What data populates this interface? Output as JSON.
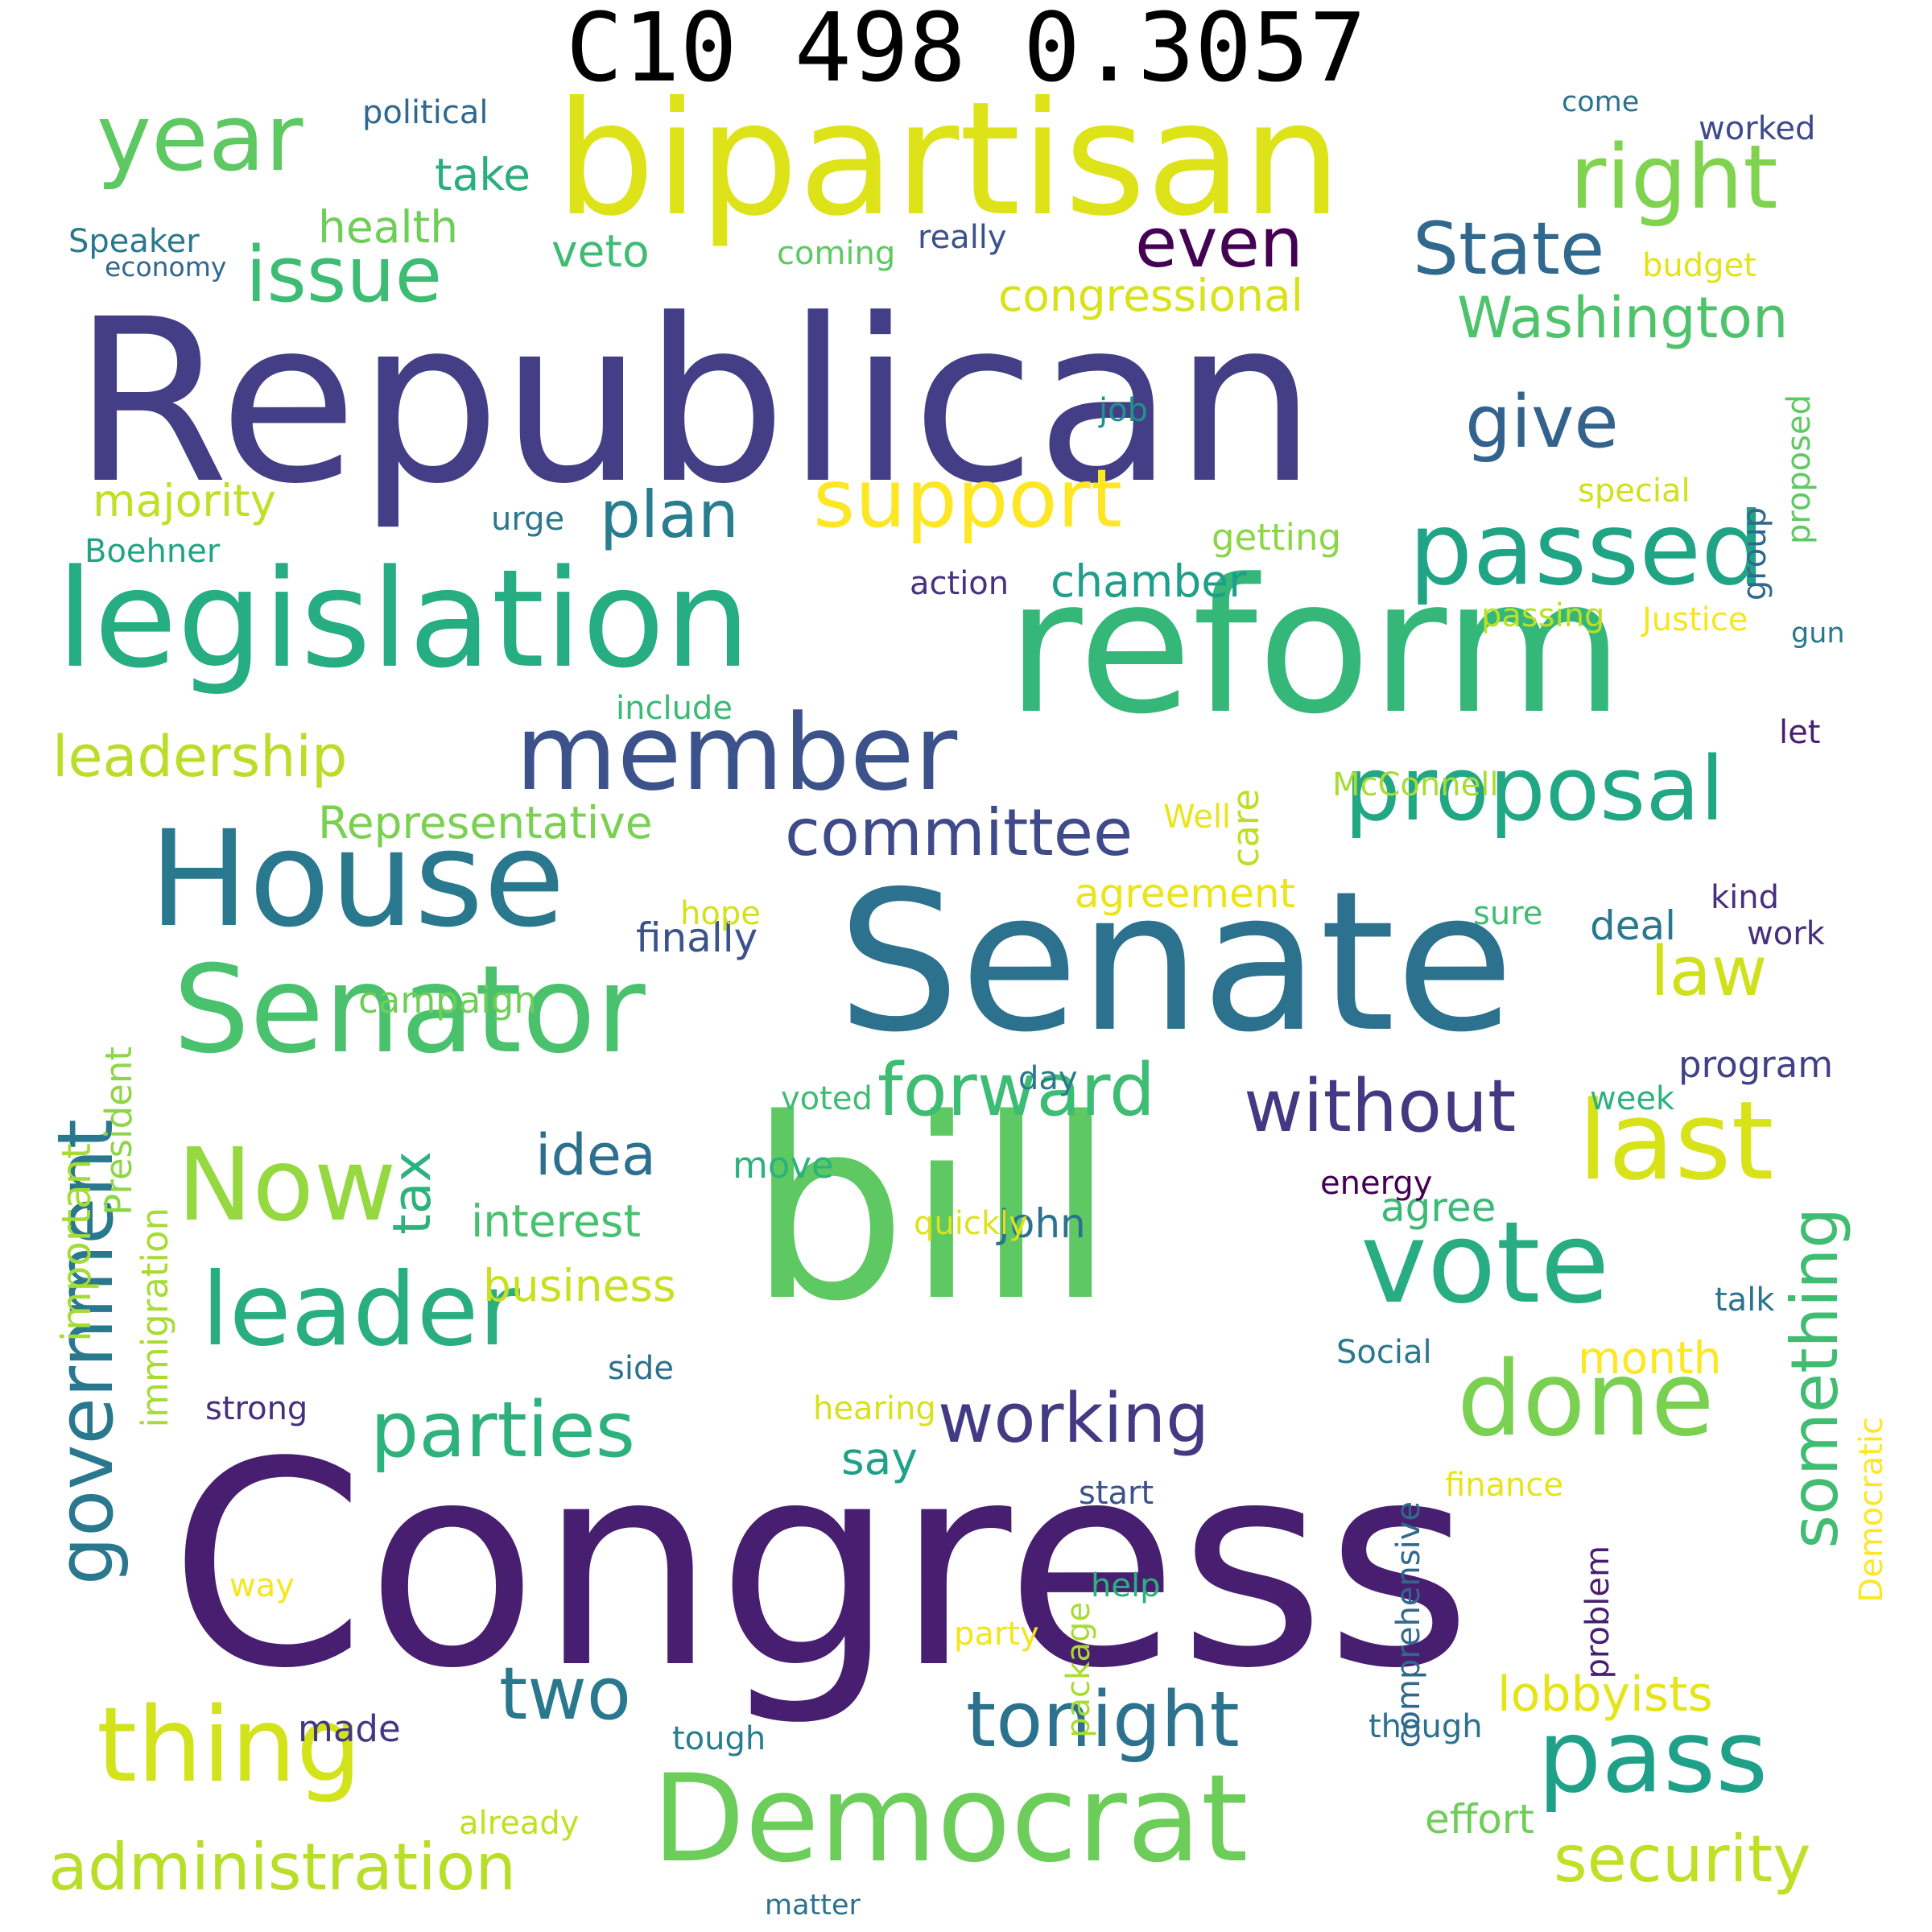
{
  "title": "C10 498 0.3057",
  "words": [
    {
      "text": "Congress",
      "color": "#481f70"
    },
    {
      "text": "Republican",
      "color": "#433e85"
    },
    {
      "text": "bill",
      "color": "#5ec962"
    },
    {
      "text": "Senate",
      "color": "#2c728e"
    },
    {
      "text": "reform",
      "color": "#35b779"
    },
    {
      "text": "bipartisan",
      "color": "#dde318"
    },
    {
      "text": "legislation",
      "color": "#26ad81"
    },
    {
      "text": "House",
      "color": "#2a788e"
    },
    {
      "text": "Senator",
      "color": "#4ac16d"
    },
    {
      "text": "Democrat",
      "color": "#6ccd5a"
    },
    {
      "text": "member",
      "color": "#3b528b"
    },
    {
      "text": "vote",
      "color": "#27ad81"
    },
    {
      "text": "passed",
      "color": "#20a486"
    },
    {
      "text": "pass",
      "color": "#1fa088"
    },
    {
      "text": "leader",
      "color": "#29af7f"
    },
    {
      "text": "thing",
      "color": "#d2e21b"
    },
    {
      "text": "done",
      "color": "#7ad151"
    },
    {
      "text": "last",
      "color": "#d8e219"
    },
    {
      "text": "year",
      "color": "#5ec962"
    },
    {
      "text": "right",
      "color": "#7fd34e"
    },
    {
      "text": "proposal",
      "color": "#22a785"
    },
    {
      "text": "Now",
      "color": "#95d840"
    },
    {
      "text": "government",
      "color": "#2a788e"
    },
    {
      "text": "State",
      "color": "#31688e"
    },
    {
      "text": "support",
      "color": "#fde725"
    },
    {
      "text": "forward",
      "color": "#3dbc74"
    },
    {
      "text": "without",
      "color": "#453882"
    },
    {
      "text": "working",
      "color": "#443a83"
    },
    {
      "text": "parties",
      "color": "#2db27d"
    },
    {
      "text": "tonight",
      "color": "#2c728e"
    },
    {
      "text": "administration",
      "color": "#b8de29"
    },
    {
      "text": "security",
      "color": "#c0df25"
    },
    {
      "text": "issue",
      "color": "#3dbc74"
    },
    {
      "text": "committee",
      "color": "#3e4a89"
    },
    {
      "text": "give",
      "color": "#33638d"
    },
    {
      "text": "law",
      "color": "#d0e11c"
    },
    {
      "text": "even",
      "color": "#440154"
    },
    {
      "text": "something",
      "color": "#40bd72"
    },
    {
      "text": "leadership",
      "color": "#bade28"
    },
    {
      "text": "two",
      "color": "#2a788e"
    },
    {
      "text": "plan",
      "color": "#287d8e"
    },
    {
      "text": "Washington",
      "color": "#4ec36b"
    },
    {
      "text": "idea",
      "color": "#2d708e"
    },
    {
      "text": "tax",
      "color": "#2db27d"
    },
    {
      "text": "Representative",
      "color": "#7ad151"
    },
    {
      "text": "lobbyists",
      "color": "#e5e419"
    },
    {
      "text": "interest",
      "color": "#48c16e"
    },
    {
      "text": "business",
      "color": "#c8e020"
    },
    {
      "text": "congressional",
      "color": "#d8e219"
    },
    {
      "text": "take",
      "color": "#29af7f"
    },
    {
      "text": "health",
      "color": "#6ece58"
    },
    {
      "text": "veto",
      "color": "#3fbc73"
    },
    {
      "text": "majority",
      "color": "#c0df25"
    },
    {
      "text": "chamber",
      "color": "#1f9e89"
    },
    {
      "text": "agreement",
      "color": "#eae51a"
    },
    {
      "text": "important",
      "color": "#a5db36"
    },
    {
      "text": "President",
      "color": "#8ed645"
    },
    {
      "text": "immigration",
      "color": "#a8db34"
    },
    {
      "text": "program",
      "color": "#424086"
    },
    {
      "text": "finally",
      "color": "#3b528b"
    },
    {
      "text": "John",
      "color": "#2c728e"
    },
    {
      "text": "agree",
      "color": "#3aba76"
    },
    {
      "text": "month",
      "color": "#fde725"
    },
    {
      "text": "say",
      "color": "#1fa088"
    },
    {
      "text": "campaign",
      "color": "#6ece58"
    },
    {
      "text": "deal",
      "color": "#2a788e"
    },
    {
      "text": "care",
      "color": "#bddf26"
    },
    {
      "text": "move",
      "color": "#2db27d"
    },
    {
      "text": "made",
      "color": "#453882"
    },
    {
      "text": "getting",
      "color": "#8bd646"
    },
    {
      "text": "effort",
      "color": "#6ece58"
    },
    {
      "text": "hope",
      "color": "#d2e21b"
    },
    {
      "text": "week",
      "color": "#2db27d"
    },
    {
      "text": "day",
      "color": "#2a788e"
    },
    {
      "text": "proposed",
      "color": "#5ec962"
    },
    {
      "text": "Democratic",
      "color": "#fde725"
    },
    {
      "text": "side",
      "color": "#2c728e"
    },
    {
      "text": "help",
      "color": "#2db27d"
    },
    {
      "text": "package",
      "color": "#a8db34"
    },
    {
      "text": "finance",
      "color": "#e7e419"
    },
    {
      "text": "political",
      "color": "#31688e"
    },
    {
      "text": "Justice",
      "color": "#f6e620"
    },
    {
      "text": "worked",
      "color": "#3e4a89"
    },
    {
      "text": "budget",
      "color": "#e2e418"
    },
    {
      "text": "special",
      "color": "#d0e11c"
    },
    {
      "text": "strong",
      "color": "#46307e"
    },
    {
      "text": "talk",
      "color": "#2c728e"
    },
    {
      "text": "Social",
      "color": "#2a788e"
    },
    {
      "text": "start",
      "color": "#3b528b"
    },
    {
      "text": "tough",
      "color": "#287d8e"
    },
    {
      "text": "though",
      "color": "#2c728e"
    },
    {
      "text": "problem",
      "color": "#481f70"
    },
    {
      "text": "comprehensive",
      "color": "#31688e"
    },
    {
      "text": "Boehner",
      "color": "#20a486"
    },
    {
      "text": "already",
      "color": "#c2df23"
    },
    {
      "text": "action",
      "color": "#46327e"
    },
    {
      "text": "urge",
      "color": "#2a788e"
    },
    {
      "text": "job",
      "color": "#21918c"
    },
    {
      "text": "group",
      "color": "#31688e"
    },
    {
      "text": "passing",
      "color": "#bddf26"
    },
    {
      "text": "gun",
      "color": "#2a788e"
    },
    {
      "text": "let",
      "color": "#481f70"
    },
    {
      "text": "include",
      "color": "#3aba76"
    },
    {
      "text": "McConnell",
      "color": "#a8db34"
    },
    {
      "text": "Well",
      "color": "#eae51a"
    },
    {
      "text": "sure",
      "color": "#40bd72"
    },
    {
      "text": "kind",
      "color": "#46307e"
    },
    {
      "text": "work",
      "color": "#46307e"
    },
    {
      "text": "voted",
      "color": "#3fbc73"
    },
    {
      "text": "quickly",
      "color": "#dde318"
    },
    {
      "text": "energy",
      "color": "#440154"
    },
    {
      "text": "party",
      "color": "#f1e51d"
    },
    {
      "text": "hearing",
      "color": "#d8e219"
    },
    {
      "text": "way",
      "color": "#f6e620"
    },
    {
      "text": "Speaker",
      "color": "#2a788e"
    },
    {
      "text": "economy",
      "color": "#31688e"
    },
    {
      "text": "coming",
      "color": "#5ec962"
    },
    {
      "text": "really",
      "color": "#3b528b"
    },
    {
      "text": "come",
      "color": "#2c728e"
    },
    {
      "text": "matter",
      "color": "#2c728e"
    }
  ]
}
